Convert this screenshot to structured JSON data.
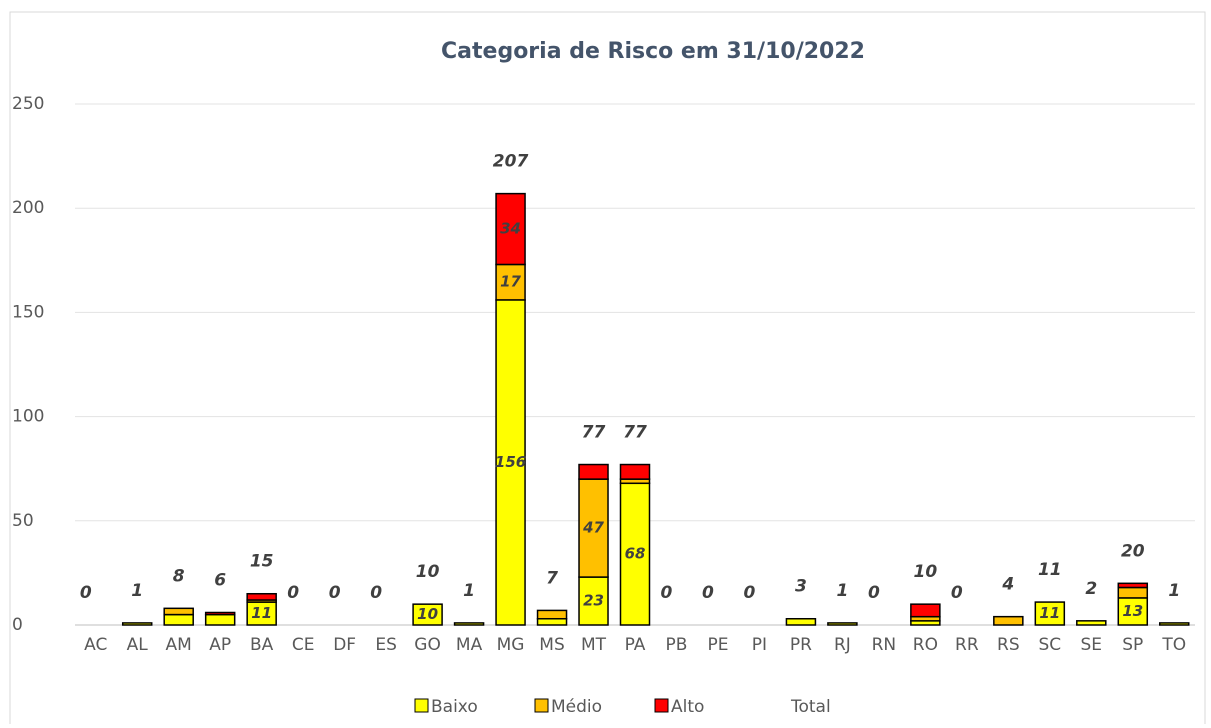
{
  "chart_data": {
    "type": "stacked_bar",
    "title": "Categoria de Risco em  31/10/2022",
    "categories": [
      "AC",
      "AL",
      "AM",
      "AP",
      "BA",
      "CE",
      "DF",
      "ES",
      "GO",
      "MA",
      "MG",
      "MS",
      "MT",
      "PA",
      "PB",
      "PE",
      "PI",
      "PR",
      "RJ",
      "RN",
      "RO",
      "RR",
      "RS",
      "SC",
      "SE",
      "SP",
      "TO"
    ],
    "series": [
      {
        "name": "Baixo",
        "color": "#ffff00",
        "values": [
          0,
          1,
          5,
          5,
          11,
          0,
          0,
          0,
          10,
          1,
          156,
          3,
          23,
          68,
          0,
          0,
          0,
          3,
          1,
          0,
          2,
          0,
          0,
          11,
          2,
          13,
          1
        ]
      },
      {
        "name": "Médio",
        "color": "#ffc000",
        "values": [
          0,
          0,
          3,
          0,
          1,
          0,
          0,
          0,
          0,
          0,
          17,
          4,
          47,
          2,
          0,
          0,
          0,
          0,
          0,
          0,
          2,
          0,
          4,
          0,
          0,
          5,
          0
        ]
      },
      {
        "name": "Alto",
        "color": "#ff0000",
        "values": [
          0,
          0,
          0,
          1,
          3,
          0,
          0,
          0,
          0,
          0,
          34,
          0,
          7,
          7,
          0,
          0,
          0,
          0,
          0,
          0,
          6,
          0,
          0,
          0,
          0,
          2,
          0
        ]
      },
      {
        "name": "Total",
        "values": [
          0,
          1,
          8,
          6,
          15,
          0,
          0,
          0,
          10,
          1,
          207,
          7,
          77,
          77,
          0,
          0,
          0,
          3,
          1,
          0,
          10,
          0,
          4,
          11,
          2,
          20,
          1
        ]
      }
    ],
    "ylim": [
      0,
      250
    ],
    "yticks": [
      0,
      50,
      100,
      150,
      200,
      250
    ],
    "grid": true,
    "legend": "bottom"
  }
}
